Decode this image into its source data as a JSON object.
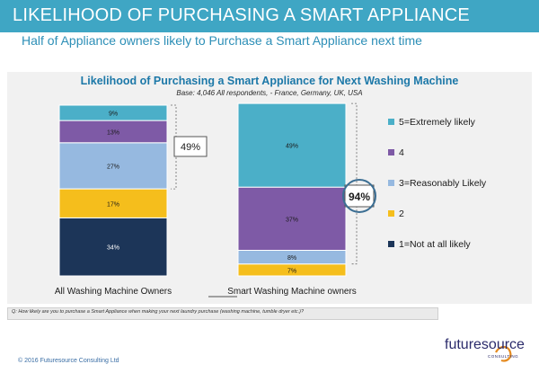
{
  "header": {
    "title": "LIKELIHOOD OF PURCHASING A SMART APPLIANCE",
    "subtitle": "Half of Appliance owners likely to Purchase a Smart Appliance next time"
  },
  "question": "Q: How likely are you to purchase a Smart Appliance when making your next laundry purchase (washing machine, tumble dryer etc.)?",
  "footer": {
    "copyright": "© 2016 Futuresource Consulting Ltd"
  },
  "logo": {
    "name": "futuresource",
    "tagline": "CONSULTING"
  },
  "colors": {
    "header_bar": "#3fa6c4",
    "extremely_likely": "#4bafc8",
    "level_4": "#7e5aa6",
    "reasonably_likely": "#96b9e0",
    "level_2": "#f5be1c",
    "not_at_all": "#1c3558"
  },
  "chart_data": {
    "type": "bar",
    "stacked": true,
    "title": "Likelihood of Purchasing a Smart Appliance for Next Washing Machine",
    "subtitle": "Base: 4,046 All respondents, - France, Germany, UK, USA",
    "categories": [
      "All Washing Machine Owners",
      "Smart Washing Machine owners"
    ],
    "series": [
      {
        "name": "1=Not at all likely",
        "values": [
          34,
          0
        ],
        "labels": [
          "34%",
          ""
        ]
      },
      {
        "name": "2",
        "values": [
          17,
          7
        ],
        "labels": [
          "17%",
          "7%"
        ]
      },
      {
        "name": "3=Reasonably Likely",
        "values": [
          27,
          8
        ],
        "labels": [
          "27%",
          "8%"
        ]
      },
      {
        "name": "4",
        "values": [
          13,
          37
        ],
        "labels": [
          "13%",
          "37%"
        ]
      },
      {
        "name": "5=Extremely likely",
        "values": [
          9,
          49
        ],
        "labels": [
          "9%",
          "49%"
        ]
      }
    ],
    "legend_order": [
      "5=Extremely likely",
      "4",
      "3=Reasonably Likely",
      "2",
      "1=Not at all likely"
    ],
    "legend_position": "right",
    "annotations": [
      "49%",
      "94%"
    ],
    "grid": false
  }
}
